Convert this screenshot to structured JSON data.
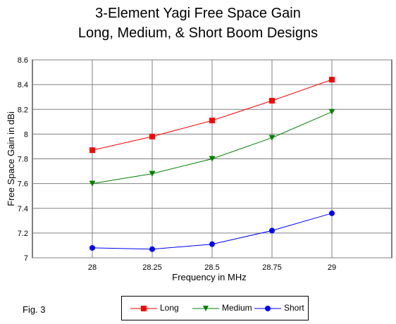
{
  "chart_data": {
    "type": "line",
    "title": "3-Element Yagi Free Space Gain",
    "subtitle": "Long, Medium, & Short Boom Designs",
    "xlabel": "Frequency in MHz",
    "ylabel": "Free Space Gain in dBi",
    "x": [
      28,
      28.25,
      28.5,
      28.75,
      29
    ],
    "x_tick_labels": [
      "28",
      "28.25",
      "28.5",
      "28.75",
      "29"
    ],
    "xlim": [
      27.75,
      29.25
    ],
    "ylim": [
      7.0,
      8.6
    ],
    "y_tick_values": [
      7.0,
      7.2,
      7.4,
      7.6,
      7.8,
      8.0,
      8.2,
      8.4,
      8.6
    ],
    "y_tick_labels": [
      "7",
      "7.2",
      "7.4",
      "7.6",
      "7.8",
      "8",
      "8.2",
      "8.4",
      "8.6"
    ],
    "grid": true,
    "series": [
      {
        "name": "Long",
        "color": "#ff0000",
        "marker": "square",
        "values": [
          7.87,
          7.98,
          8.11,
          8.27,
          8.44
        ]
      },
      {
        "name": "Medium",
        "color": "#008000",
        "marker": "triangle-down",
        "values": [
          7.6,
          7.68,
          7.8,
          7.97,
          8.18
        ]
      },
      {
        "name": "Short",
        "color": "#0000ff",
        "marker": "circle",
        "values": [
          7.08,
          7.07,
          7.11,
          7.22,
          7.36
        ]
      }
    ]
  },
  "figure_label": "Fig. 3"
}
